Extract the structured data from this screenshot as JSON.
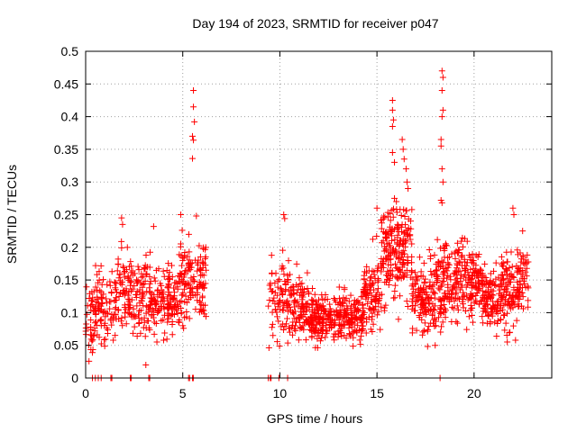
{
  "chart_data": {
    "type": "scatter",
    "title": "Day 194 of 2023, SRMTID for receiver p047",
    "xlabel": "GPS time / hours",
    "ylabel": "SRMTID / TECUs",
    "xlim": [
      0,
      24
    ],
    "ylim": [
      0,
      0.5
    ],
    "xticks": [
      0,
      5,
      10,
      15,
      20
    ],
    "xtick_labels": [
      "0",
      "5",
      "10",
      "15",
      "20"
    ],
    "yticks": [
      0,
      0.05,
      0.1,
      0.15,
      0.2,
      0.25,
      0.3,
      0.35,
      0.4,
      0.45,
      0.5
    ],
    "ytick_labels": [
      "0",
      "0.05",
      "0.1",
      "0.15",
      "0.2",
      "0.25",
      "0.3",
      "0.35",
      "0.4",
      "0.45",
      "0.5"
    ],
    "grid": true,
    "marker": "+",
    "color": "#ff0000",
    "density_segments": [
      {
        "x0": 0.0,
        "x1": 0.5,
        "n": 40,
        "base": 0.085,
        "spread": 0.04
      },
      {
        "x0": 0.5,
        "x1": 1.6,
        "n": 90,
        "base": 0.11,
        "spread": 0.05
      },
      {
        "x0": 1.6,
        "x1": 2.4,
        "n": 70,
        "base": 0.14,
        "spread": 0.05
      },
      {
        "x0": 2.4,
        "x1": 3.5,
        "n": 100,
        "base": 0.12,
        "spread": 0.05
      },
      {
        "x0": 3.5,
        "x1": 4.8,
        "n": 120,
        "base": 0.12,
        "spread": 0.04
      },
      {
        "x0": 4.8,
        "x1": 5.6,
        "n": 80,
        "base": 0.15,
        "spread": 0.05
      },
      {
        "x0": 5.6,
        "x1": 6.2,
        "n": 60,
        "base": 0.15,
        "spread": 0.06
      },
      {
        "x0": 9.4,
        "x1": 10.5,
        "n": 80,
        "base": 0.12,
        "spread": 0.05
      },
      {
        "x0": 10.5,
        "x1": 11.5,
        "n": 100,
        "base": 0.11,
        "spread": 0.04
      },
      {
        "x0": 11.5,
        "x1": 13.0,
        "n": 160,
        "base": 0.09,
        "spread": 0.03
      },
      {
        "x0": 13.0,
        "x1": 14.3,
        "n": 140,
        "base": 0.095,
        "spread": 0.03
      },
      {
        "x0": 14.3,
        "x1": 15.2,
        "n": 90,
        "base": 0.13,
        "spread": 0.05
      },
      {
        "x0": 15.2,
        "x1": 16.0,
        "n": 100,
        "base": 0.19,
        "spread": 0.07
      },
      {
        "x0": 16.0,
        "x1": 16.8,
        "n": 100,
        "base": 0.2,
        "spread": 0.07
      },
      {
        "x0": 16.8,
        "x1": 17.6,
        "n": 90,
        "base": 0.12,
        "spread": 0.04
      },
      {
        "x0": 17.6,
        "x1": 18.4,
        "n": 90,
        "base": 0.13,
        "spread": 0.06
      },
      {
        "x0": 18.4,
        "x1": 19.4,
        "n": 110,
        "base": 0.15,
        "spread": 0.05
      },
      {
        "x0": 19.4,
        "x1": 20.4,
        "n": 110,
        "base": 0.15,
        "spread": 0.05
      },
      {
        "x0": 20.4,
        "x1": 21.4,
        "n": 110,
        "base": 0.12,
        "spread": 0.04
      },
      {
        "x0": 21.4,
        "x1": 22.2,
        "n": 90,
        "base": 0.13,
        "spread": 0.05
      },
      {
        "x0": 22.2,
        "x1": 22.8,
        "n": 60,
        "base": 0.15,
        "spread": 0.04
      }
    ],
    "peak_points": [
      {
        "x": 1.85,
        "y": 0.245
      },
      {
        "x": 1.9,
        "y": 0.235
      },
      {
        "x": 3.5,
        "y": 0.232
      },
      {
        "x": 4.9,
        "y": 0.25
      },
      {
        "x": 5.7,
        "y": 0.248
      },
      {
        "x": 5.55,
        "y": 0.44
      },
      {
        "x": 5.55,
        "y": 0.415
      },
      {
        "x": 5.6,
        "y": 0.392
      },
      {
        "x": 5.5,
        "y": 0.37
      },
      {
        "x": 5.55,
        "y": 0.364
      },
      {
        "x": 5.5,
        "y": 0.336
      },
      {
        "x": 10.2,
        "y": 0.25
      },
      {
        "x": 10.25,
        "y": 0.244
      },
      {
        "x": 15.0,
        "y": 0.26
      },
      {
        "x": 15.8,
        "y": 0.425
      },
      {
        "x": 15.8,
        "y": 0.41
      },
      {
        "x": 15.85,
        "y": 0.395
      },
      {
        "x": 15.8,
        "y": 0.385
      },
      {
        "x": 15.8,
        "y": 0.345
      },
      {
        "x": 15.9,
        "y": 0.33
      },
      {
        "x": 16.3,
        "y": 0.365
      },
      {
        "x": 16.35,
        "y": 0.35
      },
      {
        "x": 16.4,
        "y": 0.335
      },
      {
        "x": 16.5,
        "y": 0.32
      },
      {
        "x": 16.55,
        "y": 0.3
      },
      {
        "x": 16.6,
        "y": 0.29
      },
      {
        "x": 15.9,
        "y": 0.275
      },
      {
        "x": 16.0,
        "y": 0.27
      },
      {
        "x": 18.35,
        "y": 0.47
      },
      {
        "x": 18.4,
        "y": 0.46
      },
      {
        "x": 18.35,
        "y": 0.44
      },
      {
        "x": 18.4,
        "y": 0.41
      },
      {
        "x": 18.35,
        "y": 0.4
      },
      {
        "x": 18.3,
        "y": 0.365
      },
      {
        "x": 18.3,
        "y": 0.355
      },
      {
        "x": 18.35,
        "y": 0.32
      },
      {
        "x": 18.4,
        "y": 0.3
      },
      {
        "x": 18.3,
        "y": 0.272
      },
      {
        "x": 18.35,
        "y": 0.268
      },
      {
        "x": 22.0,
        "y": 0.26
      },
      {
        "x": 22.05,
        "y": 0.25
      },
      {
        "x": 22.5,
        "y": 0.225
      },
      {
        "x": 3.1,
        "y": 0.02
      }
    ],
    "zero_points": [
      0.35,
      0.5,
      0.65,
      0.8,
      1.3,
      1.35,
      2.3,
      2.35,
      3.25,
      3.3,
      5.3,
      5.35,
      5.5,
      5.55,
      9.4,
      9.5,
      9.55,
      9.95,
      10.4,
      18.25
    ]
  }
}
